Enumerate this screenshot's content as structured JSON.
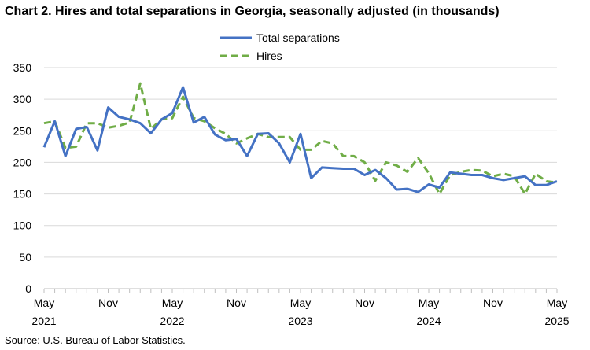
{
  "title": "Chart 2. Hires and total separations in Georgia, seasonally adjusted (in thousands)",
  "source": "Source: U.S. Bureau of Labor Statistics.",
  "chart_data": {
    "type": "line",
    "title": "Chart 2. Hires and total separations in Georgia, seasonally adjusted (in thousands)",
    "xlabel": "",
    "ylabel": "",
    "ylim": [
      0,
      350
    ],
    "yticks": [
      0,
      50,
      100,
      150,
      200,
      250,
      300,
      350
    ],
    "grid": "horizontal",
    "legend": "top-center",
    "x": [
      "2021-05",
      "2021-06",
      "2021-07",
      "2021-08",
      "2021-09",
      "2021-10",
      "2021-11",
      "2021-12",
      "2022-01",
      "2022-02",
      "2022-03",
      "2022-04",
      "2022-05",
      "2022-06",
      "2022-07",
      "2022-08",
      "2022-09",
      "2022-10",
      "2022-11",
      "2022-12",
      "2023-01",
      "2023-02",
      "2023-03",
      "2023-04",
      "2023-05",
      "2023-06",
      "2023-07",
      "2023-08",
      "2023-09",
      "2023-10",
      "2023-11",
      "2023-12",
      "2024-01",
      "2024-02",
      "2024-03",
      "2024-04",
      "2024-05",
      "2024-06",
      "2024-07",
      "2024-08",
      "2024-09",
      "2024-10",
      "2024-11",
      "2024-12",
      "2025-01",
      "2025-02",
      "2025-03",
      "2025-04",
      "2025-05"
    ],
    "x_tick_labels": [
      {
        "month": "May",
        "year": "2021",
        "index": 0
      },
      {
        "month": "Nov",
        "year": "",
        "index": 6
      },
      {
        "month": "May",
        "year": "2022",
        "index": 12
      },
      {
        "month": "Nov",
        "year": "",
        "index": 18
      },
      {
        "month": "May",
        "year": "2023",
        "index": 24
      },
      {
        "month": "Nov",
        "year": "",
        "index": 30
      },
      {
        "month": "May",
        "year": "2024",
        "index": 36
      },
      {
        "month": "Nov",
        "year": "",
        "index": 42
      },
      {
        "month": "May",
        "year": "2025",
        "index": 48
      }
    ],
    "series": [
      {
        "name": "Total separations",
        "color": "#4472C4",
        "dash": "solid",
        "values": [
          224,
          265,
          210,
          253,
          256,
          219,
          287,
          272,
          268,
          262,
          246,
          268,
          278,
          319,
          263,
          272,
          244,
          235,
          237,
          210,
          245,
          246,
          230,
          200,
          245,
          175,
          192,
          191,
          190,
          190,
          180,
          188,
          175,
          157,
          158,
          153,
          165,
          160,
          184,
          182,
          180,
          180,
          175,
          172,
          175,
          178,
          164,
          164,
          170
        ]
      },
      {
        "name": "Hires",
        "color": "#70AD47",
        "dash": "dashed",
        "values": [
          262,
          265,
          223,
          225,
          262,
          262,
          255,
          258,
          263,
          325,
          253,
          268,
          270,
          304,
          270,
          265,
          254,
          245,
          230,
          238,
          245,
          240,
          240,
          240,
          220,
          220,
          234,
          230,
          210,
          210,
          200,
          171,
          200,
          195,
          185,
          207,
          183,
          150,
          180,
          185,
          188,
          187,
          178,
          182,
          178,
          150,
          182,
          170,
          168
        ]
      }
    ]
  }
}
